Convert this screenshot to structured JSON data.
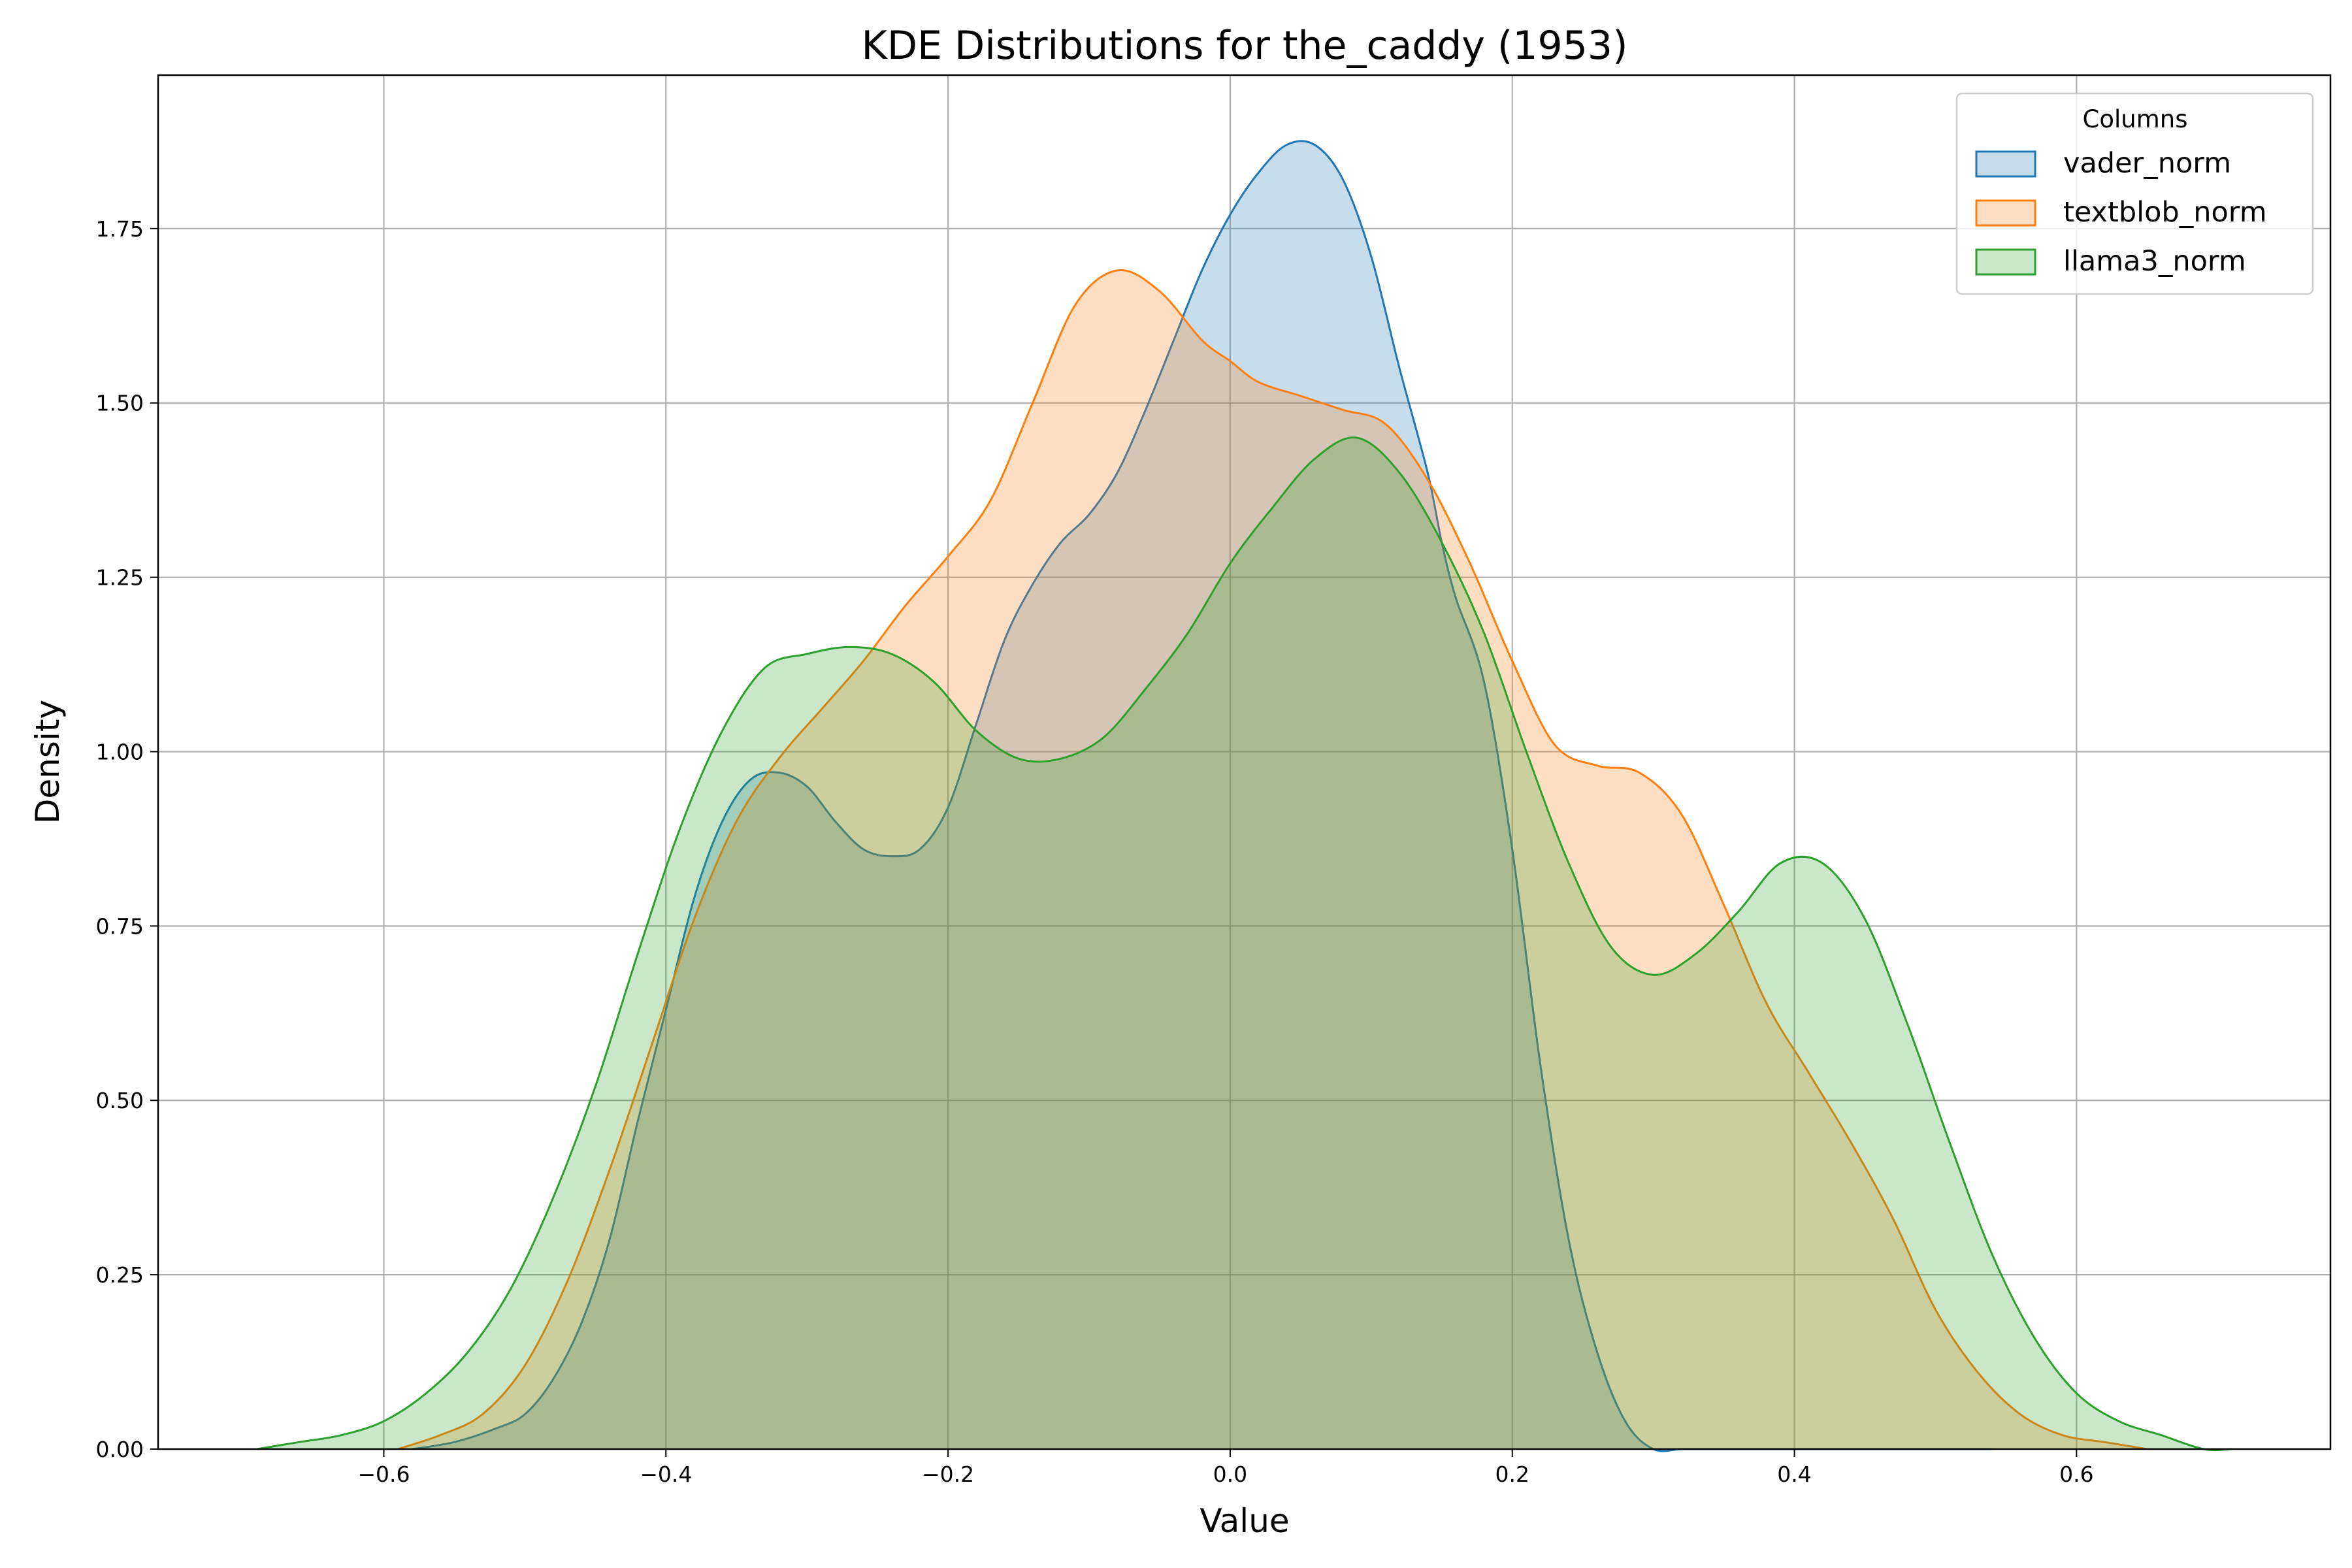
{
  "chart_data": {
    "type": "area",
    "title": "KDE Distributions for the_caddy (1953)",
    "xlabel": "Value",
    "ylabel": "Density",
    "xlim": [
      -0.76,
      0.78
    ],
    "ylim": [
      0,
      1.97
    ],
    "xticks": [
      -0.6,
      -0.4,
      -0.2,
      0.0,
      0.2,
      0.4,
      0.6
    ],
    "xtick_labels": [
      "−0.6",
      "−0.4",
      "−0.2",
      "0.0",
      "0.2",
      "0.4",
      "0.6"
    ],
    "yticks": [
      0.0,
      0.25,
      0.5,
      0.75,
      1.0,
      1.25,
      1.5,
      1.75
    ],
    "ytick_labels": [
      "0.00",
      "0.25",
      "0.50",
      "0.75",
      "1.00",
      "1.25",
      "1.50",
      "1.75"
    ],
    "grid": true,
    "legend": {
      "title": "Columns",
      "placement": "top-right"
    },
    "series": [
      {
        "name": "vader_norm",
        "color": "#1f77b4",
        "x": [
          -0.58,
          -0.55,
          -0.52,
          -0.5,
          -0.48,
          -0.46,
          -0.44,
          -0.42,
          -0.4,
          -0.38,
          -0.36,
          -0.34,
          -0.32,
          -0.3,
          -0.28,
          -0.26,
          -0.24,
          -0.22,
          -0.2,
          -0.18,
          -0.16,
          -0.14,
          -0.12,
          -0.1,
          -0.08,
          -0.06,
          -0.04,
          -0.02,
          0.0,
          0.02,
          0.04,
          0.06,
          0.08,
          0.1,
          0.12,
          0.14,
          0.15,
          0.16,
          0.18,
          0.2,
          0.22,
          0.24,
          0.26,
          0.28,
          0.3,
          0.32,
          0.34,
          0.36,
          0.38,
          0.4,
          0.42,
          0.44,
          0.46,
          0.48,
          0.5,
          0.52,
          0.54
        ],
        "y": [
          0.0,
          0.01,
          0.03,
          0.05,
          0.1,
          0.18,
          0.3,
          0.47,
          0.63,
          0.79,
          0.9,
          0.96,
          0.97,
          0.95,
          0.9,
          0.86,
          0.85,
          0.86,
          0.92,
          1.04,
          1.16,
          1.24,
          1.3,
          1.34,
          1.4,
          1.49,
          1.59,
          1.69,
          1.77,
          1.83,
          1.87,
          1.87,
          1.82,
          1.71,
          1.55,
          1.4,
          1.3,
          1.22,
          1.1,
          0.86,
          0.55,
          0.3,
          0.14,
          0.04,
          0.0,
          0.0,
          0.0,
          0.0,
          0.0,
          0.0,
          0.0,
          0.0,
          0.0,
          0.0,
          0.0,
          0.0,
          0.0
        ]
      },
      {
        "name": "textblob_norm",
        "color": "#ff7f0e",
        "x": [
          -0.59,
          -0.56,
          -0.53,
          -0.5,
          -0.47,
          -0.44,
          -0.41,
          -0.38,
          -0.35,
          -0.32,
          -0.29,
          -0.26,
          -0.23,
          -0.2,
          -0.17,
          -0.14,
          -0.11,
          -0.08,
          -0.05,
          -0.02,
          0.0,
          0.02,
          0.05,
          0.08,
          0.11,
          0.14,
          0.17,
          0.2,
          0.23,
          0.26,
          0.29,
          0.32,
          0.35,
          0.38,
          0.41,
          0.44,
          0.47,
          0.5,
          0.53,
          0.56,
          0.59,
          0.62,
          0.65
        ],
        "y": [
          0.0,
          0.02,
          0.05,
          0.12,
          0.24,
          0.4,
          0.58,
          0.76,
          0.9,
          0.99,
          1.06,
          1.13,
          1.21,
          1.28,
          1.36,
          1.5,
          1.64,
          1.69,
          1.66,
          1.59,
          1.56,
          1.53,
          1.51,
          1.49,
          1.47,
          1.39,
          1.27,
          1.13,
          1.01,
          0.98,
          0.97,
          0.91,
          0.78,
          0.64,
          0.54,
          0.44,
          0.33,
          0.2,
          0.11,
          0.05,
          0.02,
          0.01,
          0.0
        ]
      },
      {
        "name": "llama3_norm",
        "color": "#2ca02c",
        "x": [
          -0.69,
          -0.66,
          -0.63,
          -0.6,
          -0.57,
          -0.54,
          -0.51,
          -0.48,
          -0.45,
          -0.42,
          -0.39,
          -0.36,
          -0.33,
          -0.3,
          -0.27,
          -0.24,
          -0.21,
          -0.18,
          -0.15,
          -0.12,
          -0.09,
          -0.06,
          -0.03,
          0.0,
          0.03,
          0.06,
          0.09,
          0.12,
          0.15,
          0.18,
          0.21,
          0.24,
          0.27,
          0.3,
          0.33,
          0.36,
          0.39,
          0.42,
          0.45,
          0.48,
          0.51,
          0.54,
          0.57,
          0.6,
          0.63,
          0.66,
          0.69,
          0.71
        ],
        "y": [
          0.0,
          0.01,
          0.02,
          0.04,
          0.08,
          0.14,
          0.23,
          0.36,
          0.52,
          0.71,
          0.89,
          1.03,
          1.12,
          1.14,
          1.15,
          1.14,
          1.1,
          1.03,
          0.99,
          0.99,
          1.02,
          1.09,
          1.17,
          1.27,
          1.35,
          1.42,
          1.45,
          1.4,
          1.3,
          1.17,
          1.0,
          0.84,
          0.72,
          0.68,
          0.71,
          0.77,
          0.84,
          0.84,
          0.76,
          0.61,
          0.44,
          0.28,
          0.16,
          0.08,
          0.04,
          0.02,
          0.0,
          0.0
        ]
      }
    ]
  }
}
